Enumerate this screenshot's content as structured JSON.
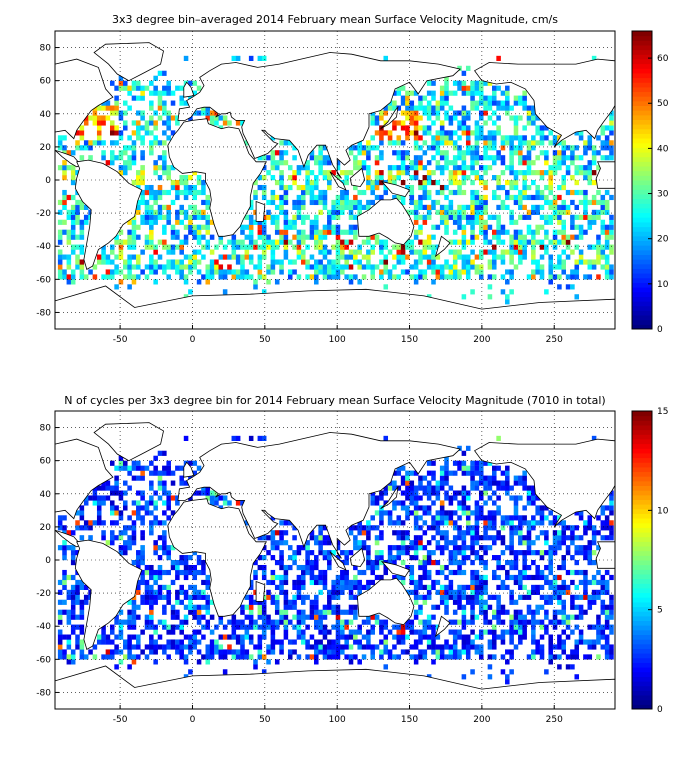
{
  "panels": [
    {
      "title": "3x3 degree bin–averaged 2014 February mean Surface Velocity Magnitude, cm/s",
      "xticks": [
        "-50",
        "0",
        "50",
        "100",
        "150",
        "200",
        "250"
      ],
      "yticks": [
        "80",
        "60",
        "40",
        "20",
        "0",
        "-20",
        "-40",
        "-60",
        "-80"
      ],
      "cticks": [
        "0",
        "10",
        "20",
        "30",
        "40",
        "50",
        "60"
      ]
    },
    {
      "title": "N of cycles per 3x3 degree bin for 2014 February mean Surface Velocity Magnitude (7010 in total)",
      "xticks": [
        "-50",
        "0",
        "50",
        "100",
        "150",
        "200",
        "250"
      ],
      "yticks": [
        "80",
        "60",
        "40",
        "20",
        "0",
        "-20",
        "-40",
        "-60",
        "-80"
      ],
      "cticks": [
        "0",
        "5",
        "10",
        "15"
      ]
    }
  ],
  "chart_data": [
    {
      "type": "heatmap",
      "title": "3x3 degree bin–averaged 2014 February mean Surface Velocity Magnitude, cm/s",
      "xlim": [
        -95,
        292
      ],
      "ylim": [
        -90,
        90
      ],
      "bin_size_deg": 3,
      "colorbar_range": [
        0,
        66
      ],
      "colormap": "jet",
      "grid": true,
      "note_values": "per-bin values estimated"
    },
    {
      "type": "heatmap",
      "title": "N of cycles per 3x3 degree bin for 2014 February mean Surface Velocity Magnitude (7010 in total)",
      "xlim": [
        -95,
        292
      ],
      "ylim": [
        -90,
        90
      ],
      "bin_size_deg": 3,
      "colorbar_range": [
        0,
        15
      ],
      "colormap": "jet",
      "grid": true,
      "total": 7010
    }
  ]
}
